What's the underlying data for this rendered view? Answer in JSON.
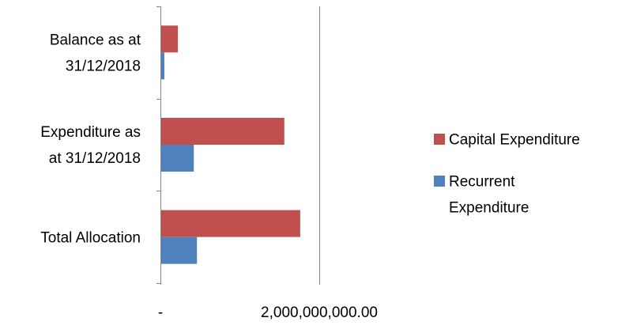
{
  "chart_data": {
    "type": "bar",
    "orientation": "horizontal",
    "categories": [
      [
        "Balance as at",
        "31/12/2018"
      ],
      [
        "Expenditure as",
        "at 31/12/2018"
      ],
      [
        "Total Allocation"
      ]
    ],
    "series": [
      {
        "name": "Capital Expenditure",
        "color": "#C0504D",
        "values": [
          210000000,
          1550000000,
          1750000000
        ]
      },
      {
        "name": [
          "Recurrent",
          "Expenditure"
        ],
        "color": "#4F81BD",
        "values": [
          40000000,
          410000000,
          450000000
        ]
      }
    ],
    "x_ticks": [
      {
        "value": 0,
        "label": "-"
      },
      {
        "value": 2000000000,
        "label": "2,000,000,000.00"
      }
    ],
    "xlim": [
      0,
      2000000000
    ],
    "gridlines": "vertical major",
    "legend_position": "right"
  }
}
